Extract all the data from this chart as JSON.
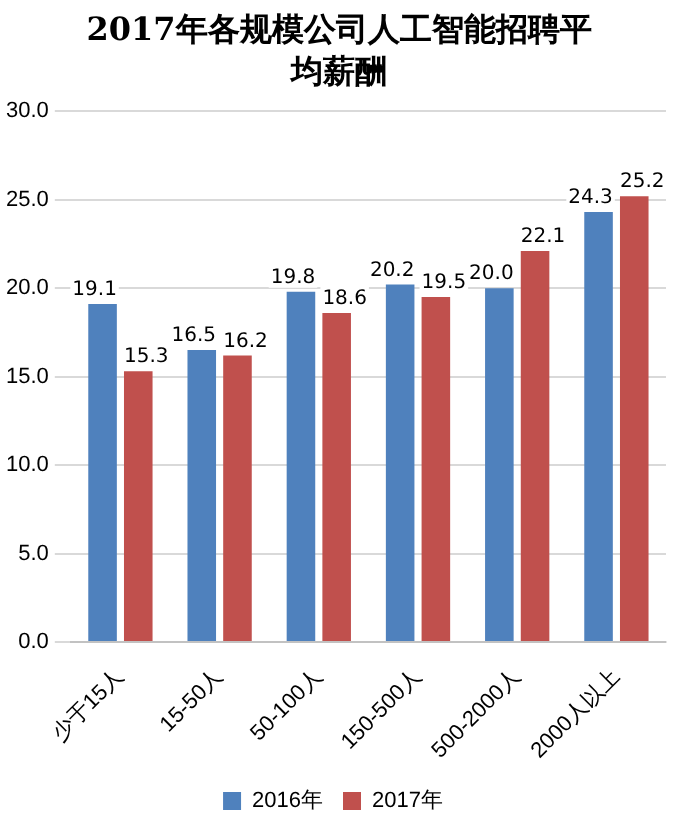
{
  "chart_data": {
    "type": "bar",
    "title": "2017年各规模公司人工智能招聘平均薪酬",
    "categories": [
      "少于15人",
      "15-50人",
      "50-100人",
      "150-500人",
      "500-2000人",
      "2000人以上"
    ],
    "series": [
      {
        "name": "2016年",
        "color": "#4f81bd",
        "values": [
          19.1,
          16.5,
          19.8,
          20.2,
          20.0,
          24.3
        ],
        "value_labels": [
          "19.1",
          "16.5",
          "19.8",
          "20.2",
          "20.0",
          "24.3"
        ]
      },
      {
        "name": "2017年",
        "color": "#c0504d",
        "values": [
          15.3,
          16.2,
          18.6,
          19.5,
          22.1,
          25.2
        ],
        "value_labels": [
          "15.3",
          "16.2",
          "18.6",
          "19.5",
          "22.1",
          "25.2"
        ]
      }
    ],
    "ylim": [
      0,
      30
    ],
    "yticks": [
      {
        "value": 0,
        "label": "0.0"
      },
      {
        "value": 5,
        "label": "5.0"
      },
      {
        "value": 10,
        "label": "10.0"
      },
      {
        "value": 15,
        "label": "15.0"
      },
      {
        "value": 20,
        "label": "20.0"
      },
      {
        "value": 25,
        "label": "25.0"
      },
      {
        "value": 30,
        "label": "30.0"
      }
    ],
    "grid": "y",
    "legend": "bottom"
  }
}
